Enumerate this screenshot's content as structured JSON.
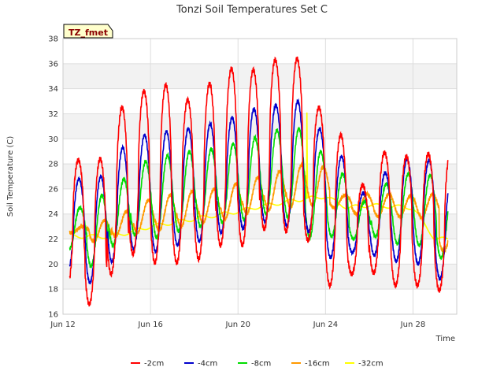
{
  "chart_data": {
    "type": "line",
    "title": "Tonzi Soil Temperatures Set C",
    "xlabel": "Time",
    "ylabel": "Soil Temperature (C)",
    "badge": "TZ_fmet",
    "xlim": [
      12.0,
      30.0
    ],
    "ylim": [
      16,
      38
    ],
    "x_ticks": [
      {
        "value": 12,
        "label": "Jun 12"
      },
      {
        "value": 16,
        "label": "Jun 16"
      },
      {
        "value": 20,
        "label": "Jun 20"
      },
      {
        "value": 24,
        "label": "Jun 24"
      },
      {
        "value": 28,
        "label": "Jun 28"
      }
    ],
    "y_ticks": [
      16,
      18,
      20,
      22,
      24,
      26,
      28,
      30,
      32,
      34,
      36,
      38
    ],
    "grid": true,
    "legend_position": "bottom",
    "x_start": 12.3,
    "x_end": 29.6,
    "series": [
      {
        "name": "-2cm",
        "color": "#ff0000",
        "daily_min": [
          18.2,
          16.8,
          19.2,
          20.8,
          20.1,
          20.1,
          20.4,
          21.5,
          21.5,
          22.8,
          22.6,
          21.9,
          18.3,
          19.2,
          19.3,
          18.3,
          18.3,
          17.9
        ],
        "daily_max": [
          28.3,
          28.4,
          32.5,
          33.8,
          34.3,
          33.1,
          34.4,
          35.6,
          35.5,
          36.3,
          36.4,
          32.5,
          30.3,
          26.3,
          28.9,
          28.6,
          28.8,
          28.8
        ]
      },
      {
        "name": "-4cm",
        "color": "#0000cc",
        "daily_min": [
          19.5,
          18.5,
          20.2,
          21.2,
          21.0,
          21.5,
          21.8,
          22.5,
          22.8,
          23.4,
          23.0,
          22.6,
          20.5,
          20.9,
          20.7,
          20.2,
          20.0,
          18.8
        ],
        "daily_max": [
          26.8,
          27.0,
          29.3,
          30.3,
          30.6,
          30.8,
          31.2,
          31.7,
          32.4,
          32.7,
          33.0,
          30.8,
          28.6,
          25.7,
          27.3,
          28.4,
          28.3,
          26.5
        ]
      },
      {
        "name": "-8cm",
        "color": "#00dd00",
        "daily_min": [
          21.2,
          19.8,
          21.5,
          22.3,
          22.1,
          22.6,
          23.0,
          23.3,
          23.5,
          24.0,
          23.7,
          22.1,
          22.2,
          22.0,
          22.2,
          21.6,
          21.5,
          20.5
        ],
        "daily_max": [
          24.5,
          25.5,
          26.8,
          28.2,
          28.7,
          29.0,
          29.2,
          29.6,
          30.1,
          30.7,
          30.8,
          29.0,
          27.2,
          25.0,
          26.4,
          27.2,
          27.1,
          25.5
        ]
      },
      {
        "name": "-16cm",
        "color": "#ff9900",
        "daily_min": [
          22.5,
          21.8,
          22.2,
          22.5,
          22.7,
          23.0,
          23.3,
          23.6,
          24.0,
          24.3,
          24.5,
          24.7,
          24.5,
          24.0,
          23.8,
          23.8,
          23.7,
          21.0
        ],
        "daily_max": [
          23.0,
          23.5,
          24.2,
          25.1,
          25.5,
          25.8,
          26.0,
          26.4,
          26.9,
          27.4,
          27.9,
          27.8,
          25.5,
          25.6,
          25.6,
          25.5,
          25.6,
          23.4
        ]
      },
      {
        "name": "-32cm",
        "color": "#ffff00",
        "daily_mean": [
          22.3,
          22.2,
          22.2,
          22.5,
          23.0,
          23.3,
          23.6,
          23.9,
          24.2,
          24.6,
          24.9,
          25.2,
          25.4,
          24.5,
          24.7,
          24.6,
          24.5,
          22.0
        ],
        "spike": {
          "x": 23.15,
          "y": 32.1
        }
      }
    ]
  }
}
